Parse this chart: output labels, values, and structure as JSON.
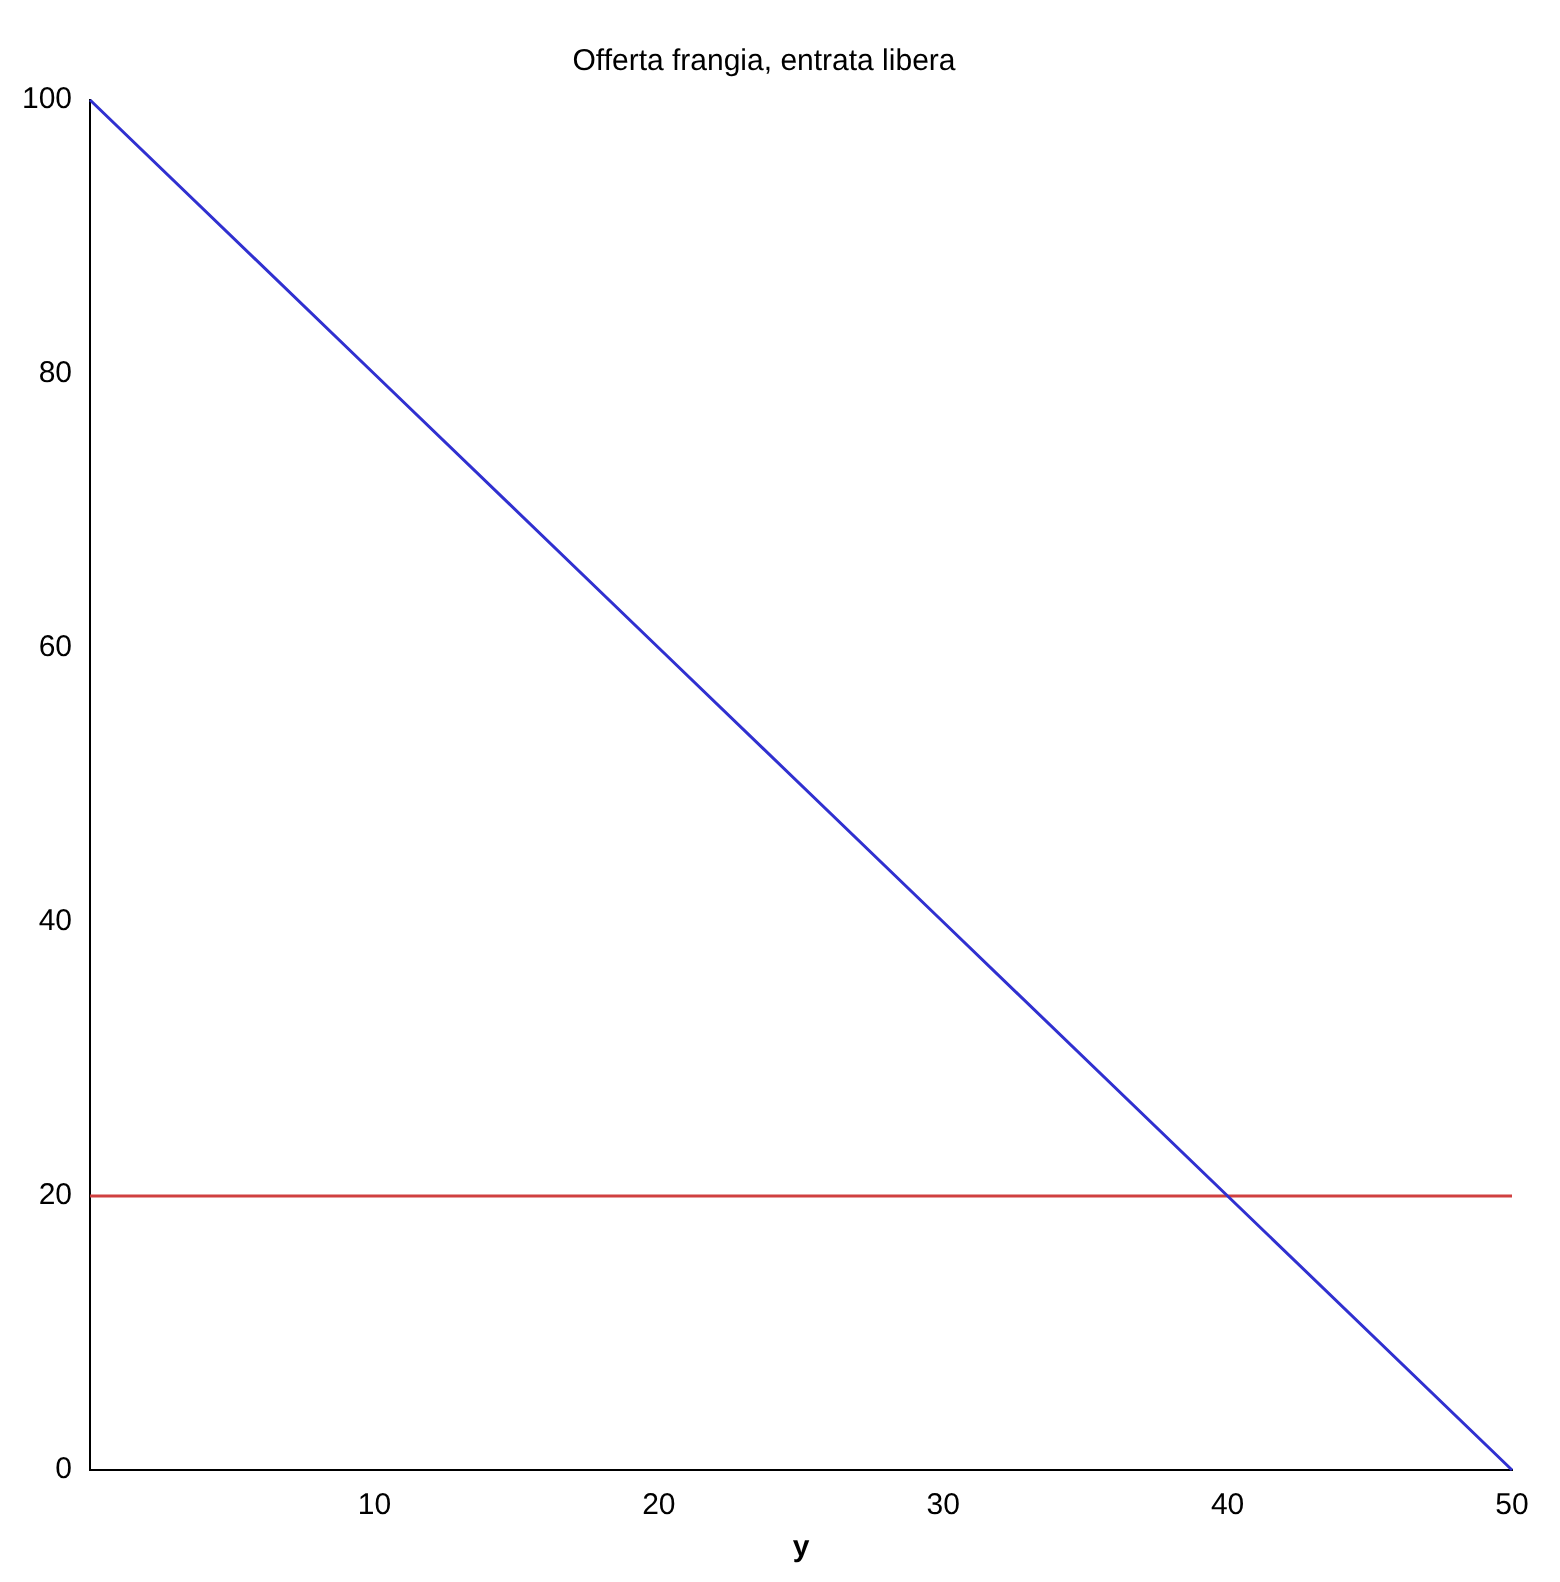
{
  "chart_data": {
    "type": "line",
    "title": "Offerta frangia, entrata libera",
    "xlabel": "y",
    "xlim": [
      0,
      50
    ],
    "xticks": [
      10,
      20,
      30,
      40,
      50
    ],
    "ylim": [
      0,
      100
    ],
    "yticks": [
      0,
      20,
      40,
      60,
      80,
      100
    ],
    "grid": false,
    "legend": false,
    "marker": "none",
    "series": [
      {
        "color": "#3030d0",
        "x": [
          0,
          10,
          20,
          30,
          40,
          50
        ],
        "values": [
          100,
          80,
          60,
          40,
          20,
          0
        ]
      },
      {
        "color": "#d04040",
        "x": [
          0,
          10,
          20,
          30,
          40,
          50
        ],
        "values": [
          20,
          20,
          20,
          20,
          20,
          20
        ]
      }
    ]
  }
}
